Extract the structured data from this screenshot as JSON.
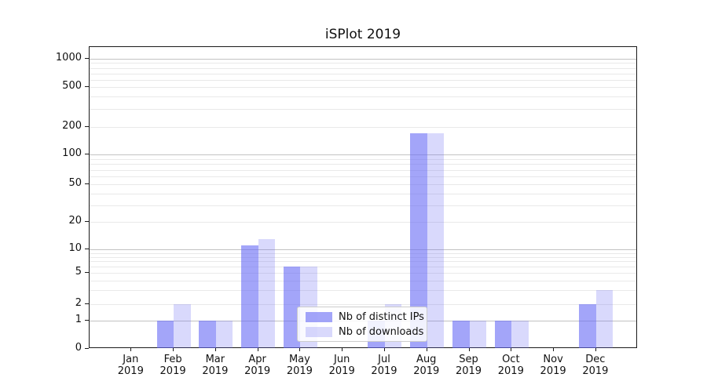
{
  "title": "iSPlot 2019",
  "colors": {
    "bar_base": "#6669f5",
    "bar_distinct_ips_solid": "#a5a7f6",
    "bar_downloads_solid": "#d9dafb",
    "grid_major": "#c2c2c2",
    "grid_minor": "#e9e9e9",
    "axis": "#1a1a1a",
    "legend_border": "#cccccc",
    "background": "#ffffff"
  },
  "chart_data": {
    "type": "bar",
    "title": "iSPlot 2019",
    "categories": [
      "Jan 2019",
      "Feb 2019",
      "Mar 2019",
      "Apr 2019",
      "May 2019",
      "Jun 2019",
      "Jul 2019",
      "Aug 2019",
      "Sep 2019",
      "Oct 2019",
      "Nov 2019",
      "Dec 2019"
    ],
    "months": [
      "Jan",
      "Feb",
      "Mar",
      "Apr",
      "May",
      "Jun",
      "Jul",
      "Aug",
      "Sep",
      "Oct",
      "Nov",
      "Dec"
    ],
    "year": "2019",
    "series": [
      {
        "name": "Nb of distinct IPs",
        "color": "rgba(102,105,245,0.6)",
        "values": [
          0,
          1,
          1,
          11,
          6,
          0,
          1,
          170,
          1,
          1,
          0,
          2
        ]
      },
      {
        "name": "Nb of downloads",
        "color": "rgba(102,105,245,0.25)",
        "values": [
          0,
          2,
          1,
          13,
          6,
          0,
          2,
          170,
          1,
          1,
          0,
          3
        ]
      }
    ],
    "xlabel": "",
    "ylabel": "",
    "yscale": "symlog",
    "yticks": [
      0,
      1,
      2,
      5,
      10,
      20,
      50,
      100,
      200,
      500,
      1000
    ],
    "major_gridline_values": [
      1,
      10,
      100,
      1000
    ],
    "minor_gridline_values": [
      3,
      4,
      6,
      7,
      8,
      9,
      30,
      40,
      60,
      70,
      80,
      90,
      300,
      400,
      600,
      700,
      800,
      900
    ],
    "ylim": [
      0,
      1300
    ],
    "grid": true,
    "legend_position": "lower center"
  }
}
